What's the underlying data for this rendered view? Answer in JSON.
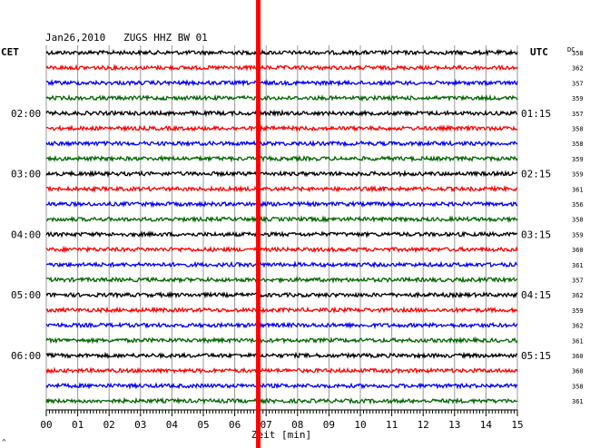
{
  "chart_data": {
    "type": "line",
    "title": "Jan26,2010   ZUGS HHZ BW 01",
    "xlabel": "Zeit [min]",
    "left_label": "CET",
    "right_label": "UTC",
    "dc_label": "DC",
    "xlim": [
      0,
      15
    ],
    "x_ticks": [
      "00",
      "01",
      "02",
      "03",
      "04",
      "05",
      "06",
      "07",
      "08",
      "09",
      "10",
      "11",
      "12",
      "13",
      "14",
      "15"
    ],
    "trace_colors": [
      "#000000",
      "#ff0000",
      "#0000ff",
      "#006600"
    ],
    "trace_count": 24,
    "cet_labels": [
      {
        "trace": 4,
        "text": "02:00"
      },
      {
        "trace": 8,
        "text": "03:00"
      },
      {
        "trace": 12,
        "text": "04:00"
      },
      {
        "trace": 16,
        "text": "05:00"
      },
      {
        "trace": 20,
        "text": "06:00"
      }
    ],
    "utc_labels": [
      {
        "trace": 4,
        "text": "01:15"
      },
      {
        "trace": 8,
        "text": "02:15"
      },
      {
        "trace": 12,
        "text": "03:15"
      },
      {
        "trace": 16,
        "text": "04:15"
      },
      {
        "trace": 20,
        "text": "05:15"
      }
    ],
    "dc_values": [
      358,
      362,
      357,
      359,
      357,
      358,
      358,
      359,
      359,
      361,
      356,
      358,
      359,
      360,
      361,
      357,
      362,
      359,
      362,
      361,
      360,
      360,
      358,
      361
    ],
    "marker": {
      "x": 6.75,
      "color": "#ff0000"
    },
    "footer_mark": "^"
  }
}
